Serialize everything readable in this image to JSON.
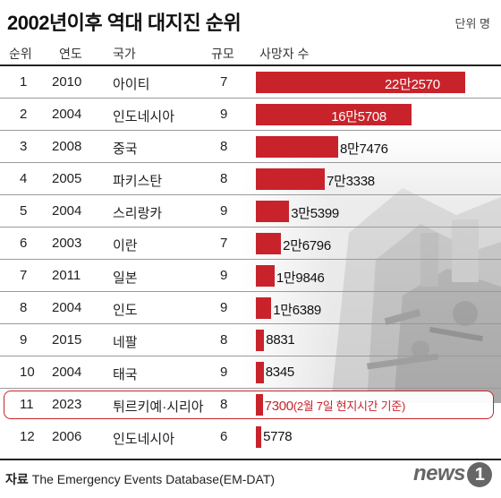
{
  "title": "2002년이후 역대 대지진 순위",
  "unit": "단위 명",
  "headers": {
    "rank": "순위",
    "year": "연도",
    "country": "국가",
    "magnitude": "규모",
    "deaths": "사망자 수"
  },
  "source_label": "자료",
  "source_text": "The Emergency Events Database(EM-DAT)",
  "logo": {
    "word": "news",
    "mark": "1"
  },
  "colors": {
    "bar": "#c8232b",
    "highlight": "#c8232b"
  },
  "chart_data": {
    "type": "bar",
    "orientation": "horizontal",
    "title": "2002년이후 역대 대지진 순위",
    "unit": "명",
    "rows": [
      {
        "rank": "1",
        "year": "2010",
        "country": "아이티",
        "magnitude": "7",
        "deaths": 222570,
        "label": "22만2570"
      },
      {
        "rank": "2",
        "year": "2004",
        "country": "인도네시아",
        "magnitude": "9",
        "deaths": 165708,
        "label": "16만5708"
      },
      {
        "rank": "3",
        "year": "2008",
        "country": "중국",
        "magnitude": "8",
        "deaths": 87476,
        "label": "8만7476"
      },
      {
        "rank": "4",
        "year": "2005",
        "country": "파키스탄",
        "magnitude": "8",
        "deaths": 73338,
        "label": "7만3338"
      },
      {
        "rank": "5",
        "year": "2004",
        "country": "스리랑카",
        "magnitude": "9",
        "deaths": 35399,
        "label": "3만5399"
      },
      {
        "rank": "6",
        "year": "2003",
        "country": "이란",
        "magnitude": "7",
        "deaths": 26796,
        "label": "2만6796"
      },
      {
        "rank": "7",
        "year": "2011",
        "country": "일본",
        "magnitude": "9",
        "deaths": 19846,
        "label": "1만9846"
      },
      {
        "rank": "8",
        "year": "2004",
        "country": "인도",
        "magnitude": "9",
        "deaths": 16389,
        "label": "1만6389"
      },
      {
        "rank": "9",
        "year": "2015",
        "country": "네팔",
        "magnitude": "8",
        "deaths": 8831,
        "label": "8831"
      },
      {
        "rank": "10",
        "year": "2004",
        "country": "태국",
        "magnitude": "9",
        "deaths": 8345,
        "label": "8345"
      },
      {
        "rank": "11",
        "year": "2023",
        "country": "튀르키예·시리아",
        "magnitude": "8",
        "deaths": 7300,
        "label": "7300",
        "note": "(2월 7일 현지시간 기준)",
        "highlight": true
      },
      {
        "rank": "12",
        "year": "2006",
        "country": "인도네시아",
        "magnitude": "6",
        "deaths": 5778,
        "label": "5778"
      }
    ]
  }
}
